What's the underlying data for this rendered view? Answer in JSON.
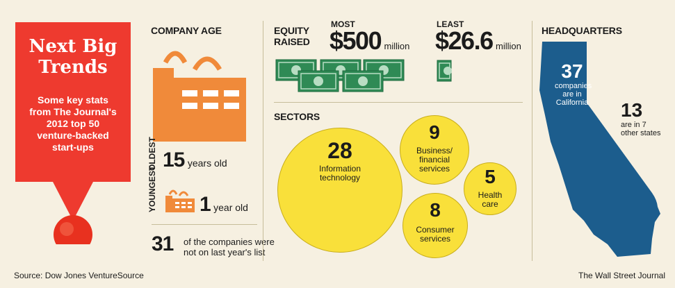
{
  "trends": {
    "title_line1": "Next Big",
    "title_line2": "Trends",
    "subtitle_lines": [
      "Some key stats",
      "from The Journal's",
      "2012 top 50",
      "venture-backed",
      "start-ups"
    ]
  },
  "company_age": {
    "heading": "COMPANY AGE",
    "oldest_label": "OLDEST",
    "oldest_value": "15",
    "oldest_unit": "years old",
    "youngest_label": "YOUNGEST",
    "youngest_value": "1",
    "youngest_unit": "year old",
    "returning_value": "31",
    "returning_text_line1": "of the companies were",
    "returning_text_line2": "not on last year's list"
  },
  "equity": {
    "heading_line1": "EQUITY",
    "heading_line2": "RAISED",
    "most_label": "MOST",
    "most_value": "$500",
    "most_unit": "million",
    "least_label": "LEAST",
    "least_value": "$26.6",
    "least_unit": "million"
  },
  "sectors": {
    "heading": "SECTORS",
    "items": [
      {
        "value": "28",
        "label_lines": [
          "Information",
          "technology"
        ]
      },
      {
        "value": "9",
        "label_lines": [
          "Business/",
          "financial",
          "services"
        ]
      },
      {
        "value": "5",
        "label_lines": [
          "Health",
          "care"
        ]
      },
      {
        "value": "8",
        "label_lines": [
          "Consumer",
          "services"
        ]
      }
    ]
  },
  "headquarters": {
    "heading": "HEADQUARTERS",
    "california_value": "37",
    "california_label_lines": [
      "companies",
      "are in",
      "California"
    ],
    "other_value": "13",
    "other_label_lines": [
      "are in 7",
      "other states"
    ]
  },
  "footer": {
    "source": "Source: Dow Jones VentureSource",
    "credit": "The Wall Street Journal"
  },
  "colors": {
    "red": "#ee3a2f",
    "orange": "#f08a3a",
    "yellow": "#f9e03a",
    "money_green": "#2f8a55",
    "california_blue": "#1c5d8d"
  }
}
